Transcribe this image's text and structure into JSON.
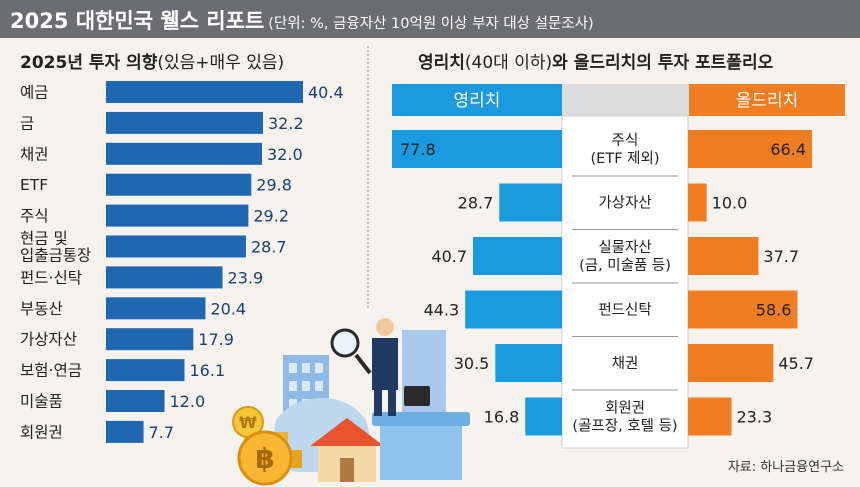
{
  "header": {
    "title": "2025 대한민국 웰스 리포트",
    "subtitle": "(단위: %, 금융자산 10억원 이상 부자 대상 설문조사)"
  },
  "left_title": {
    "bold": "2025년 투자 의향",
    "light": "(있음+매우 있음)"
  },
  "right_title": {
    "bold": "영리치",
    "light": "(40대 이하)",
    "bold2": "와 올드리치의 투자 포트폴리오"
  },
  "source": "자료: 하나금융연구소",
  "colors": {
    "left_bar": "#1f67b1",
    "young": "#1a9be0",
    "old": "#f07d22",
    "header": "#6b6d70"
  },
  "chart_data": [
    {
      "type": "bar",
      "orientation": "horizontal",
      "categories": [
        [
          "예금"
        ],
        [
          "금"
        ],
        [
          "채권"
        ],
        [
          "ETF"
        ],
        [
          "주식"
        ],
        [
          "현금 및",
          "입출금통장"
        ],
        [
          "펀드·신탁"
        ],
        [
          "부동산"
        ],
        [
          "가상자산"
        ],
        [
          "보험·연금"
        ],
        [
          "미술품"
        ],
        [
          "회원권"
        ]
      ],
      "values": [
        40.4,
        32.2,
        32.0,
        29.8,
        29.2,
        28.7,
        23.9,
        20.4,
        17.9,
        16.1,
        12.0,
        7.7
      ],
      "value_labels": [
        "40.4",
        "32.2",
        "32.0",
        "29.8",
        "29.2",
        "28.7",
        "23.9",
        "20.4",
        "17.9",
        "16.1",
        "12.0",
        "7.7"
      ]
    },
    {
      "type": "bar",
      "orientation": "butterfly",
      "series_headers": [
        "영리치",
        "올드리치"
      ],
      "categories": [
        [
          "주식",
          "(ETF 제외)"
        ],
        [
          "가상자산"
        ],
        [
          "실물자산",
          "(금, 미술품 등)"
        ],
        [
          "펀드신탁"
        ],
        [
          "채권"
        ],
        [
          "회원권",
          "(골프장, 호텔 등)"
        ]
      ],
      "series": [
        {
          "name": "영리치",
          "values": [
            77.8,
            28.7,
            40.7,
            44.3,
            30.5,
            16.8
          ],
          "value_labels": [
            "77.8",
            "28.7",
            "40.7",
            "44.3",
            "30.5",
            "16.8"
          ]
        },
        {
          "name": "올드리치",
          "values": [
            66.4,
            10.0,
            37.7,
            58.6,
            45.7,
            23.3
          ],
          "value_labels": [
            "66.4",
            "10.0",
            "37.7",
            "58.6",
            "45.7",
            "23.3"
          ]
        }
      ]
    }
  ]
}
